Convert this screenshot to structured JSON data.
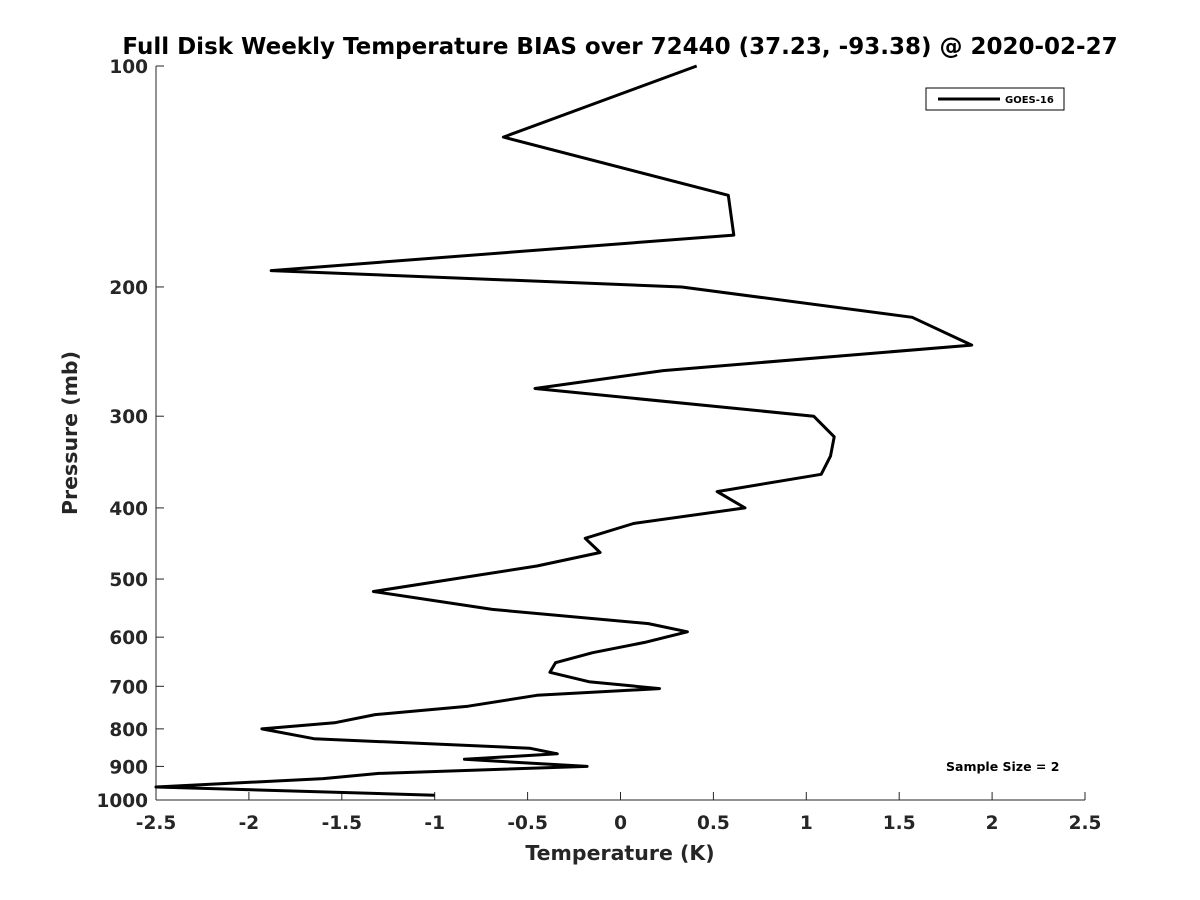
{
  "chart_data": {
    "type": "line",
    "title": "Full Disk Weekly Temperature BIAS over 72440 (37.23, -93.38) @ 2020-02-27",
    "xlabel": "Temperature (K)",
    "ylabel": "Pressure (mb)",
    "xlim": [
      -2.5,
      2.5
    ],
    "ylim": [
      100,
      1000
    ],
    "y_scale": "log",
    "y_reversed": true,
    "x_ticks": [
      "-2.5",
      "-2",
      "-1.5",
      "-1",
      "-0.5",
      "0",
      "0.5",
      "1",
      "1.5",
      "2",
      "2.5"
    ],
    "y_ticks": [
      100,
      200,
      300,
      400,
      500,
      600,
      700,
      800,
      900,
      1000
    ],
    "grid": false,
    "legend_position": "top-right",
    "series": [
      {
        "name": "GOES-16",
        "color": "#000000",
        "points": [
          {
            "x": 0.41,
            "y": 100
          },
          {
            "x": -0.63,
            "y": 125
          },
          {
            "x": 0.58,
            "y": 150
          },
          {
            "x": 0.61,
            "y": 170
          },
          {
            "x": -1.88,
            "y": 190
          },
          {
            "x": 0.33,
            "y": 200
          },
          {
            "x": 1.57,
            "y": 220
          },
          {
            "x": 1.89,
            "y": 240
          },
          {
            "x": 0.23,
            "y": 260
          },
          {
            "x": -0.46,
            "y": 275
          },
          {
            "x": 1.04,
            "y": 300
          },
          {
            "x": 1.15,
            "y": 320
          },
          {
            "x": 1.13,
            "y": 340
          },
          {
            "x": 1.08,
            "y": 360
          },
          {
            "x": 0.52,
            "y": 380
          },
          {
            "x": 0.67,
            "y": 400
          },
          {
            "x": 0.07,
            "y": 420
          },
          {
            "x": -0.19,
            "y": 440
          },
          {
            "x": -0.11,
            "y": 460
          },
          {
            "x": -0.45,
            "y": 480
          },
          {
            "x": -1.33,
            "y": 520
          },
          {
            "x": -0.69,
            "y": 550
          },
          {
            "x": 0.15,
            "y": 575
          },
          {
            "x": 0.36,
            "y": 590
          },
          {
            "x": 0.13,
            "y": 610
          },
          {
            "x": -0.15,
            "y": 630
          },
          {
            "x": -0.35,
            "y": 650
          },
          {
            "x": -0.38,
            "y": 670
          },
          {
            "x": -0.17,
            "y": 690
          },
          {
            "x": 0.21,
            "y": 705
          },
          {
            "x": -0.45,
            "y": 720
          },
          {
            "x": -0.82,
            "y": 745
          },
          {
            "x": -1.32,
            "y": 765
          },
          {
            "x": -1.54,
            "y": 785
          },
          {
            "x": -1.93,
            "y": 800
          },
          {
            "x": -1.65,
            "y": 825
          },
          {
            "x": -0.49,
            "y": 850
          },
          {
            "x": -0.34,
            "y": 865
          },
          {
            "x": -0.84,
            "y": 880
          },
          {
            "x": -0.18,
            "y": 900
          },
          {
            "x": -1.3,
            "y": 920
          },
          {
            "x": -1.6,
            "y": 935
          },
          {
            "x": -2.5,
            "y": 960
          },
          {
            "x": -1.0,
            "y": 985
          }
        ]
      }
    ],
    "annotations": [
      "Sample Size = 2"
    ]
  }
}
